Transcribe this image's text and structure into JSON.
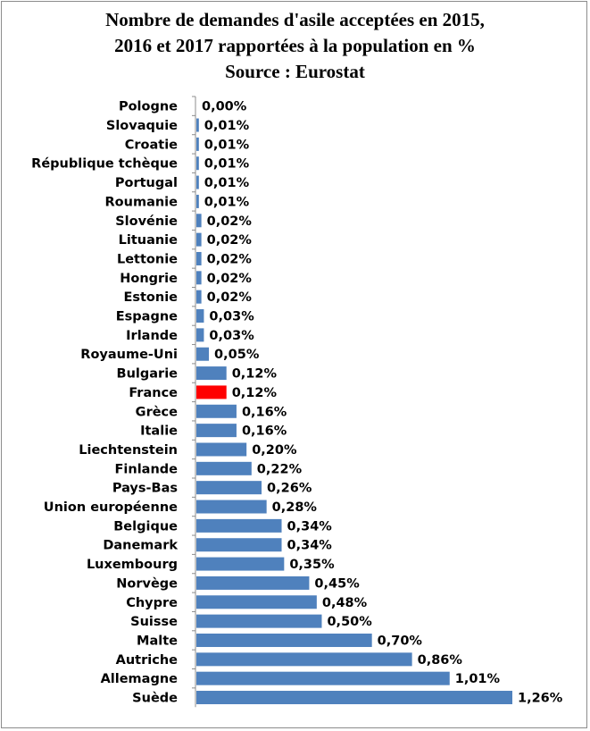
{
  "chart_data": {
    "type": "bar",
    "orientation": "horizontal",
    "title_lines": [
      "Nombre de demandes d'asile acceptées en 2015,",
      "2016 et 2017 rapportées à la population en %",
      "Source : Eurostat"
    ],
    "categories": [
      "Pologne",
      "Slovaquie",
      "Croatie",
      "République tchèque",
      "Portugal",
      "Roumanie",
      "Slovénie",
      "Lituanie",
      "Lettonie",
      "Hongrie",
      "Estonie",
      "Espagne",
      "Irlande",
      "Royaume-Uni",
      "Bulgarie",
      "France",
      "Grèce",
      "Italie",
      "Liechtenstein",
      "Finlande",
      "Pays-Bas",
      "Union européenne",
      "Belgique",
      "Danemark",
      "Luxembourg",
      "Norvège",
      "Chypre",
      "Suisse",
      "Malte",
      "Autriche",
      "Allemagne",
      "Suède"
    ],
    "values": [
      0.0,
      0.01,
      0.01,
      0.01,
      0.01,
      0.01,
      0.02,
      0.02,
      0.02,
      0.02,
      0.02,
      0.03,
      0.03,
      0.05,
      0.12,
      0.12,
      0.16,
      0.16,
      0.2,
      0.22,
      0.26,
      0.28,
      0.34,
      0.34,
      0.35,
      0.45,
      0.48,
      0.5,
      0.7,
      0.86,
      1.01,
      1.26
    ],
    "value_labels": [
      "0,00%",
      "0,01%",
      "0,01%",
      "0,01%",
      "0,01%",
      "0,01%",
      "0,02%",
      "0,02%",
      "0,02%",
      "0,02%",
      "0,02%",
      "0,03%",
      "0,03%",
      "0,05%",
      "0,12%",
      "0,12%",
      "0,16%",
      "0,16%",
      "0,20%",
      "0,22%",
      "0,26%",
      "0,28%",
      "0,34%",
      "0,34%",
      "0,35%",
      "0,45%",
      "0,48%",
      "0,50%",
      "0,70%",
      "0,86%",
      "1,01%",
      "1,26%"
    ],
    "unit": "%",
    "xlim": [
      0,
      1.26
    ],
    "grid": false,
    "legend": "none",
    "bar_color": "#4f81bd",
    "highlight": {
      "category": "France",
      "color": "#ff0000"
    }
  }
}
